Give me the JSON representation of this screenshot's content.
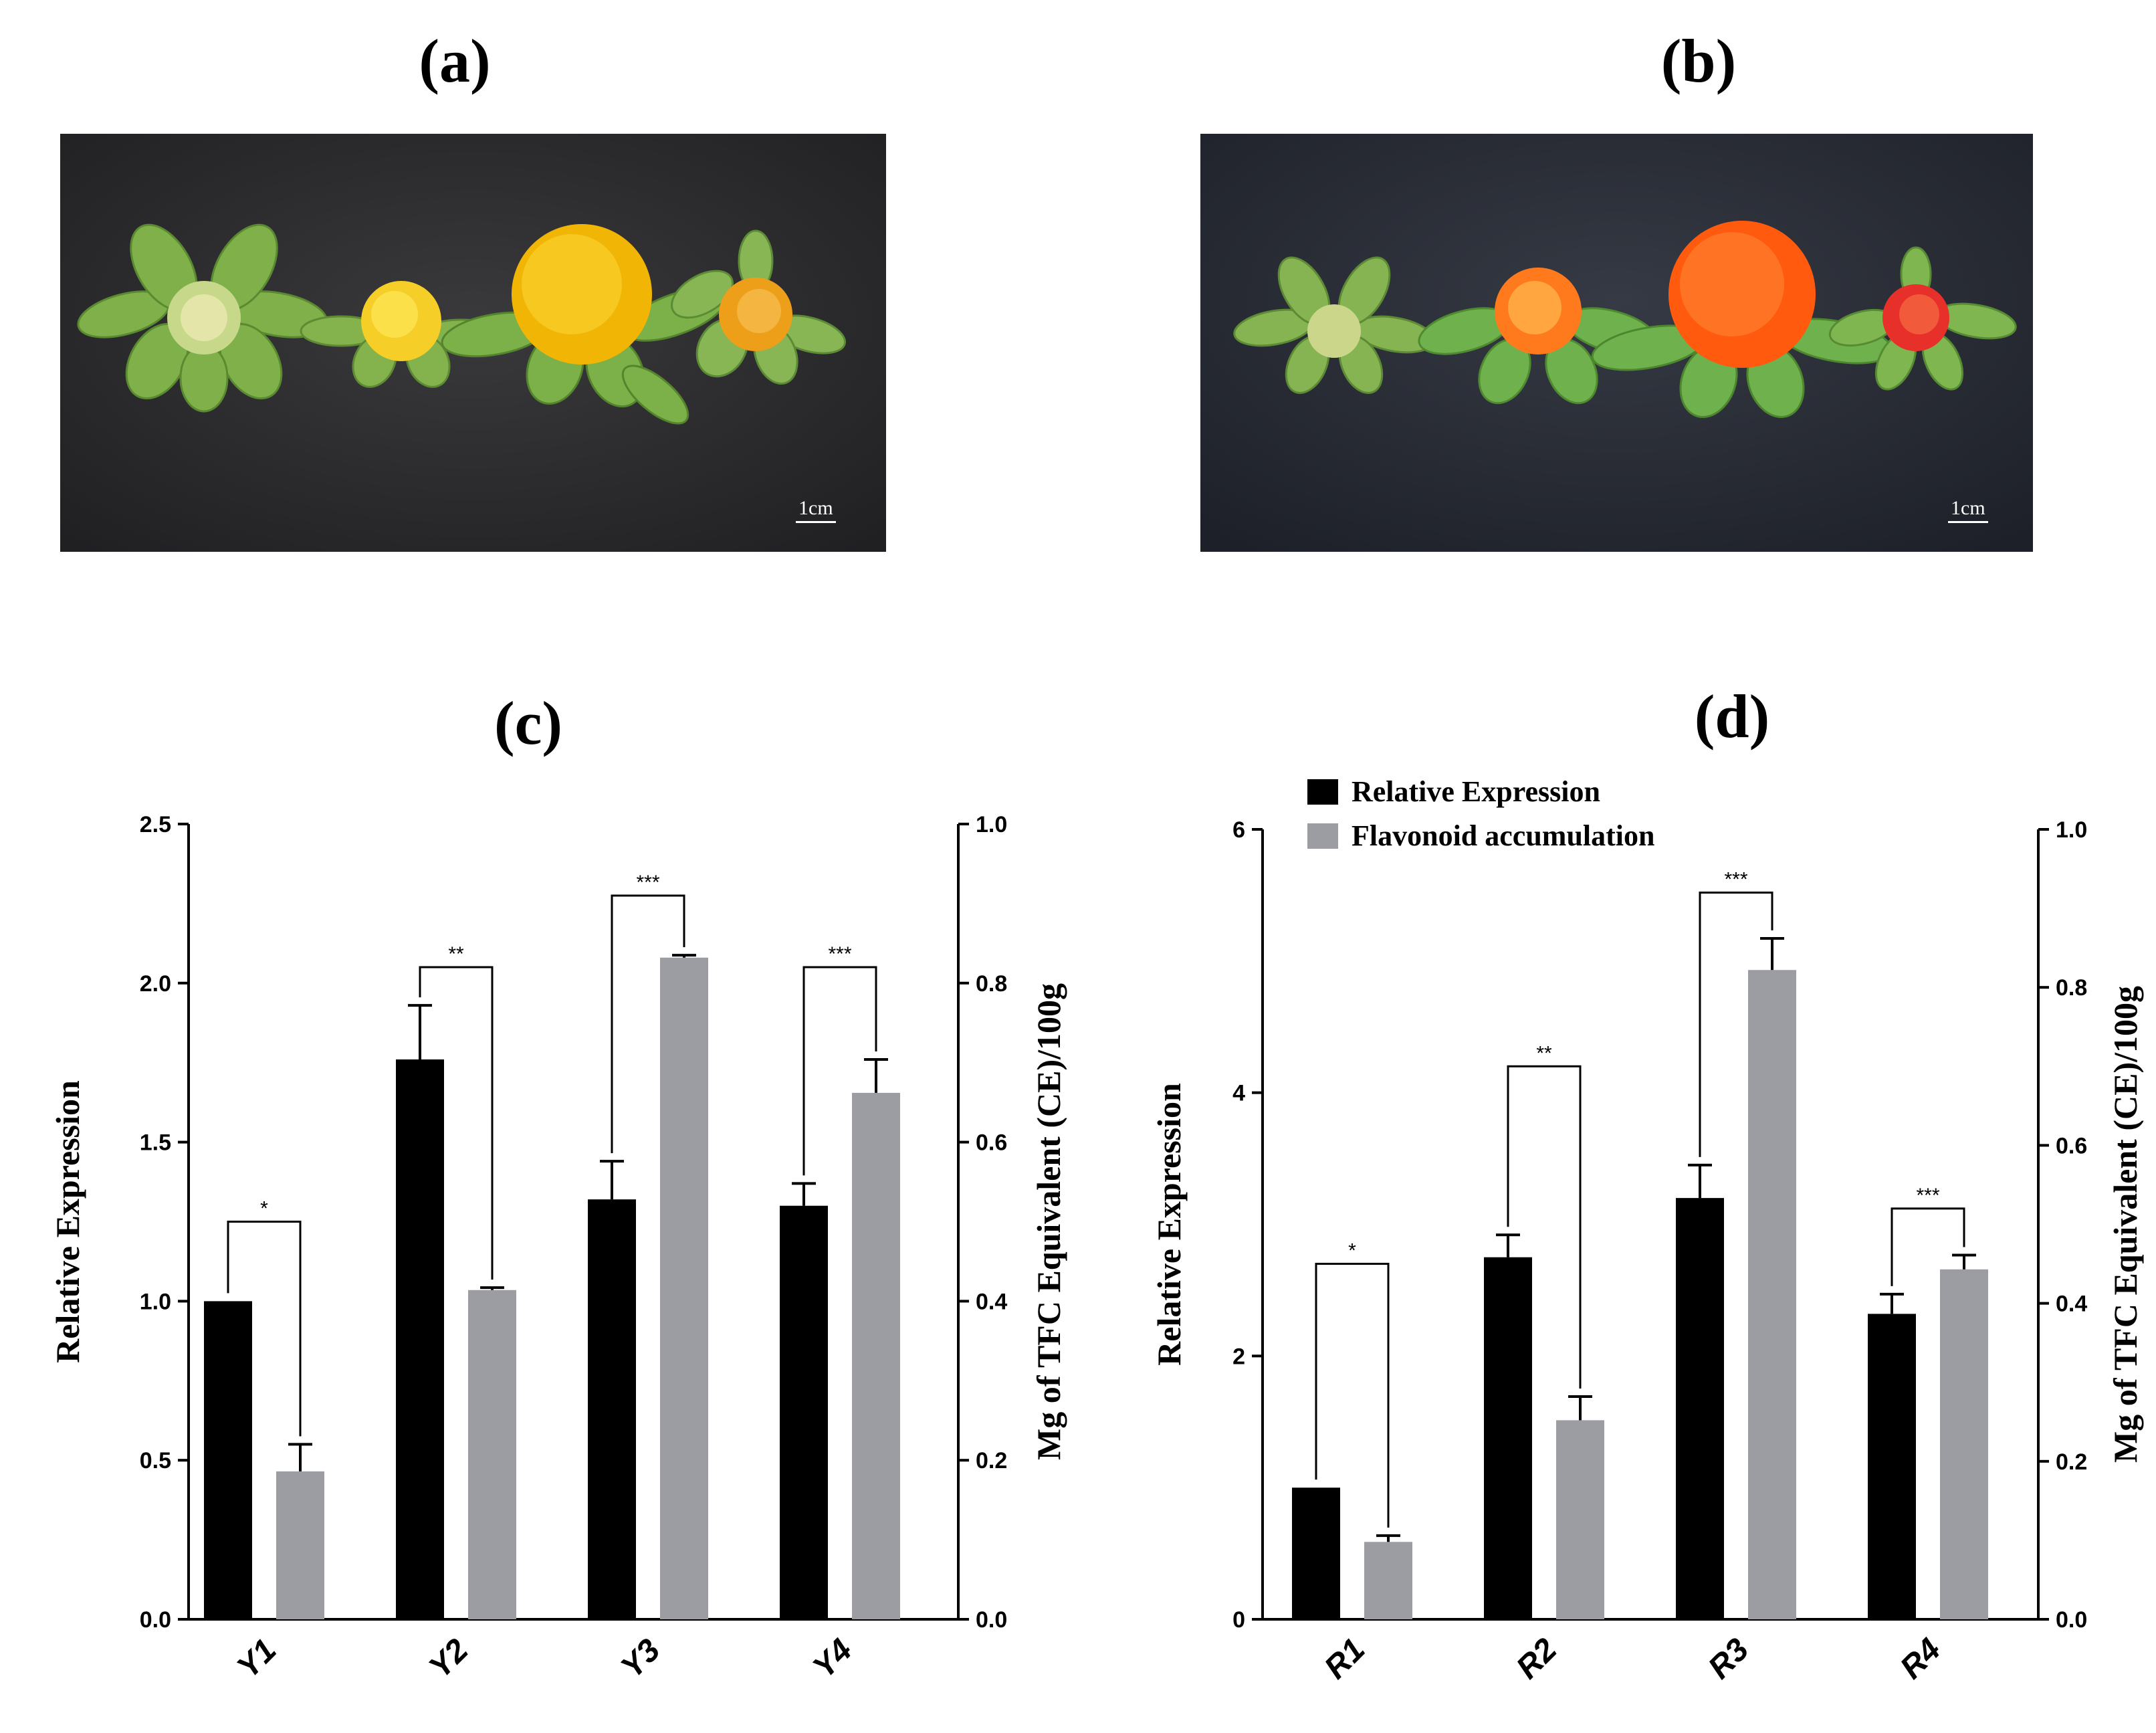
{
  "panels": {
    "a": "(a)",
    "b": "(b)",
    "c": "(c)",
    "d": "(d)"
  },
  "photos": {
    "a": {
      "scale_label": "1cm",
      "flower_colors": [
        "#9fcf5e",
        "#f3c316",
        "#f6b200",
        "#efa21b"
      ]
    },
    "b": {
      "scale_label": "1cm",
      "flower_colors": [
        "#a8c96a",
        "#ff6a1a",
        "#ff5a10",
        "#e8302b"
      ]
    }
  },
  "legend": {
    "relative_expression": "Relative Expression",
    "flavonoid_accumulation": "Flavonoid accumulation"
  },
  "colors": {
    "black_bar": "#000000",
    "gray_bar": "#9c9ca3",
    "axis": "#000000"
  },
  "chart_data": [
    {
      "id": "c",
      "type": "bar",
      "title": "(c)",
      "categories": [
        "Y1",
        "Y2",
        "Y3",
        "Y4"
      ],
      "ylabel": "Relative Expression",
      "y2label": "Mg of TFC Equivalent (CE)/100g",
      "ylim": [
        0,
        2.5
      ],
      "yticks": [
        "0.0",
        "0.5",
        "1.0",
        "1.5",
        "2.0",
        "2.5"
      ],
      "y2lim": [
        0,
        1.0
      ],
      "y2ticks": [
        "0.0",
        "0.2",
        "0.4",
        "0.6",
        "0.8",
        "1.0"
      ],
      "series": [
        {
          "name": "Relative Expression",
          "axis": "left",
          "values": [
            1.0,
            1.76,
            1.32,
            1.3
          ],
          "errors": [
            0,
            0.17,
            0.12,
            0.07
          ]
        },
        {
          "name": "Flavonoid accumulation",
          "axis": "right",
          "values": [
            0.186,
            0.414,
            0.832,
            0.662
          ],
          "errors": [
            0.034,
            0.003,
            0.003,
            0.042
          ]
        }
      ],
      "significance": [
        "*",
        "**",
        "***",
        "***"
      ],
      "sig_level": [
        0.5,
        0.82,
        0.91,
        0.82
      ]
    },
    {
      "id": "d",
      "type": "bar",
      "title": "(d)",
      "categories": [
        "R1",
        "R2",
        "R3",
        "R4"
      ],
      "ylabel": "Relative Expression",
      "y2label": "Mg of TFC Equivalent (CE)/100g",
      "ylim": [
        0,
        6
      ],
      "yticks": [
        "0",
        "2",
        "4",
        "6"
      ],
      "y2lim": [
        0,
        1.0
      ],
      "y2ticks": [
        "0.0",
        "0.2",
        "0.4",
        "0.6",
        "0.8",
        "1.0"
      ],
      "series": [
        {
          "name": "Relative Expression",
          "axis": "left",
          "values": [
            1.0,
            2.75,
            3.2,
            2.32
          ],
          "errors": [
            0,
            0.17,
            0.25,
            0.15
          ]
        },
        {
          "name": "Flavonoid accumulation",
          "axis": "right",
          "values": [
            0.098,
            0.252,
            0.822,
            0.443
          ],
          "errors": [
            0.008,
            0.03,
            0.04,
            0.018
          ]
        }
      ],
      "significance": [
        "*",
        "**",
        "***",
        "***"
      ],
      "sig_level": [
        0.45,
        0.7,
        0.92,
        0.52
      ]
    }
  ]
}
